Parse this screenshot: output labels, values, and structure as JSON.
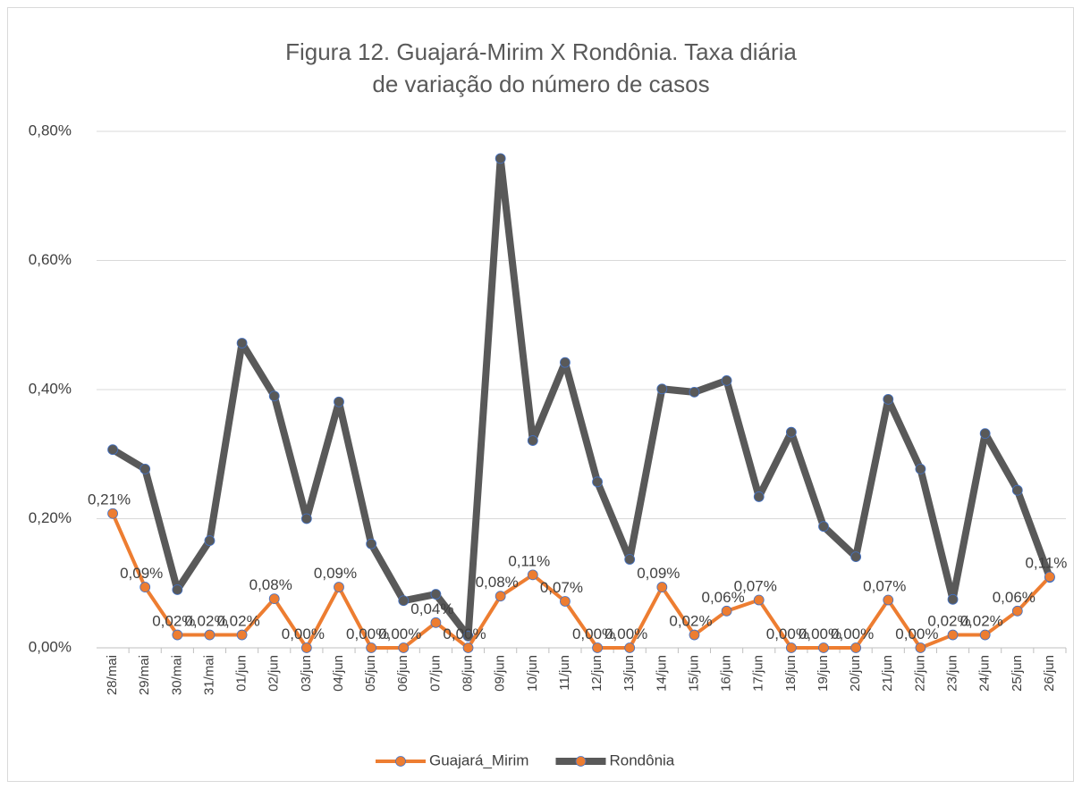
{
  "chart_data": {
    "type": "line",
    "title": "Figura 12. Guajará-Mirim X Rondônia. Taxa diária de variação do número de casos",
    "categories": [
      "28/mai",
      "29/mai",
      "30/mai",
      "31/mai",
      "01/jun",
      "02/jun",
      "03/jun",
      "04/jun",
      "05/jun",
      "06/jun",
      "07/jun",
      "08/jun",
      "09/jun",
      "10/jun",
      "11/jun",
      "12/jun",
      "13/jun",
      "14/jun",
      "15/jun",
      "16/jun",
      "17/jun",
      "18/jun",
      "19/jun",
      "20/jun",
      "21/jun",
      "22/jun",
      "23/jun",
      "24/jun",
      "25/jun",
      "26/jun"
    ],
    "series": [
      {
        "name": "Guajará_Mirim",
        "color": "#ed7d31",
        "values": [
          0.208,
          0.094,
          0.02,
          0.02,
          0.02,
          0.076,
          0,
          0.094,
          0,
          0,
          0.039,
          0,
          0.08,
          0.113,
          0.072,
          0,
          0,
          0.094,
          0.02,
          0.057,
          0.074,
          0,
          0,
          0,
          0.074,
          0,
          0.02,
          0.02,
          0.057,
          0.11
        ],
        "value_labels": [
          "0,21%",
          "0,09%",
          "0,02%",
          "0,02%",
          "0,02%",
          "0,08%",
          "0,00%",
          "0,09%",
          "0,00%",
          "0,00%",
          "0,04%",
          "0,00%",
          "0,08%",
          "0,11%",
          "0,07%",
          "0,00%",
          "0,00%",
          "0,09%",
          "0,02%",
          "0,06%",
          "0,07%",
          "0,00%",
          "0,00%",
          "0,00%",
          "0,07%",
          "0,00%",
          "0,02%",
          "0,02%",
          "0,06%",
          "0,11%"
        ]
      },
      {
        "name": "Rondônia",
        "color": "#595959",
        "values": [
          0.307,
          0.277,
          0.09,
          0.166,
          0.472,
          0.39,
          0.2,
          0.381,
          0.161,
          0.073,
          0.083,
          0.018,
          0.758,
          0.321,
          0.442,
          0.257,
          0.137,
          0.401,
          0.396,
          0.414,
          0.234,
          0.334,
          0.188,
          0.141,
          0.385,
          0.277,
          0.075,
          0.332,
          0.244,
          0.109
        ]
      }
    ],
    "ylim": [
      0,
      0.8
    ],
    "yticks": [
      {
        "value": 0,
        "label": "0,00%"
      },
      {
        "value": 0.2,
        "label": "0,20%"
      },
      {
        "value": 0.4,
        "label": "0,40%"
      },
      {
        "value": 0.6,
        "label": "0,60%"
      },
      {
        "value": 0.8,
        "label": "0,80%"
      }
    ],
    "grid": true,
    "legend": "bottom"
  }
}
